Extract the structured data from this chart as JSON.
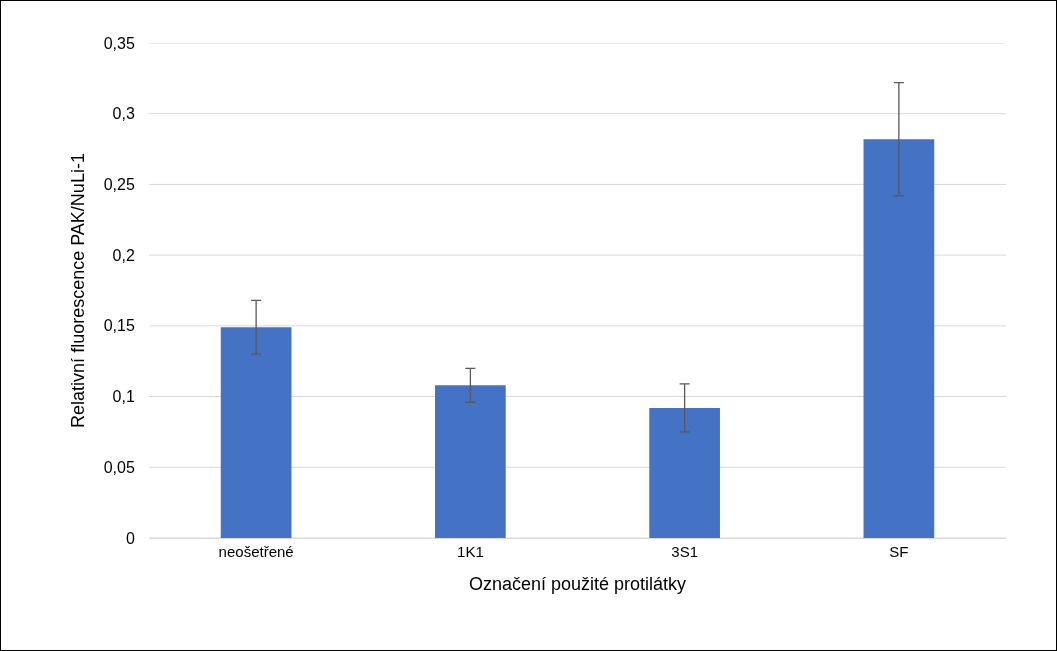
{
  "chart_data": {
    "type": "bar",
    "xlabel": "Označení použité protilátky",
    "ylabel": "Relativní fluorescence PAK/NuLi-1",
    "categories": [
      "neošetřené",
      "1K1",
      "3S1",
      "SF"
    ],
    "values": [
      0.149,
      0.108,
      0.092,
      0.282
    ],
    "errors": [
      0.019,
      0.012,
      0.017,
      0.04
    ],
    "color": "#4472c4",
    "ylim": [
      0,
      0.35
    ],
    "yticks": [
      {
        "value": 0,
        "label": "0"
      },
      {
        "value": 0.05,
        "label": "0,05"
      },
      {
        "value": 0.1,
        "label": "0,1"
      },
      {
        "value": 0.15,
        "label": "0,15"
      },
      {
        "value": 0.2,
        "label": "0,2"
      },
      {
        "value": 0.25,
        "label": "0,25"
      },
      {
        "value": 0.3,
        "label": "0,3"
      },
      {
        "value": 0.35,
        "label": "0,35"
      }
    ],
    "grid": "y"
  }
}
